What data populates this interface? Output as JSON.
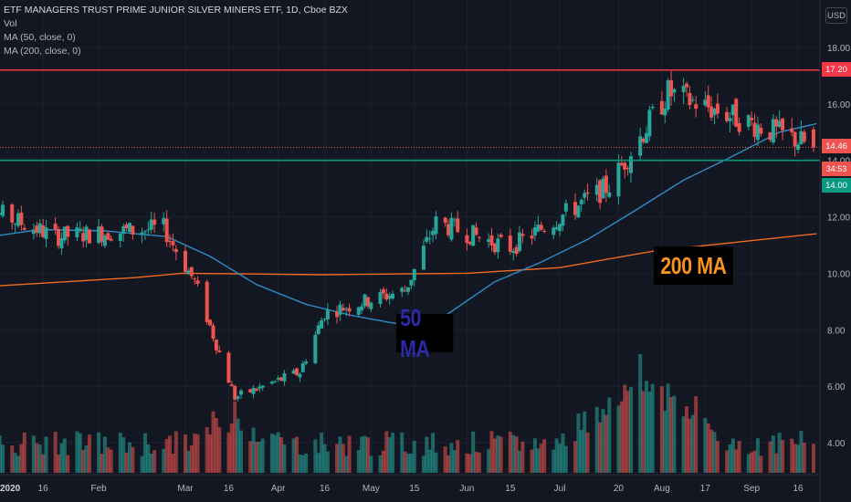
{
  "legend": {
    "title": "ETF MANAGERS TRUST PRIME JUNIOR SILVER MINERS ETF, 1D, Cboe BZX",
    "vol": "Vol",
    "ma50": "MA (50, close, 0)",
    "ma200": "MA (200, close, 0)"
  },
  "currency_button": "USD",
  "annotations": {
    "ma50_label": "50 MA",
    "ma200_label": "200 MA"
  },
  "price_tags": {
    "resistance": "17.20",
    "current": "14.46",
    "countdown": "34:53",
    "support": "14.00"
  },
  "colors": {
    "up": "#26a69a",
    "down": "#ef5350",
    "ma50": "#2e8bc9",
    "ma200": "#f26b21",
    "resistance_line": "#f23645",
    "support_line": "#089981",
    "background": "#131722"
  },
  "chart_data": {
    "type": "candlestick",
    "y_axis": {
      "ticks": [
        "18.00",
        "16.00",
        "14.00",
        "12.00",
        "10.00",
        "8.00",
        "6.00",
        "4.00"
      ],
      "tick_values": [
        18,
        16,
        14,
        12,
        10,
        8,
        6,
        4
      ],
      "ylim": [
        3.0,
        19.0
      ]
    },
    "x_axis": {
      "labels": [
        "2020",
        "16",
        "Feb",
        "Mar",
        "16",
        "Apr",
        "16",
        "May",
        "15",
        "Jun",
        "15",
        "Jul",
        "20",
        "Aug",
        "17",
        "Sep",
        "16"
      ],
      "label_dates": [
        "2020-01-01",
        "2020-01-16",
        "2020-02-03",
        "2020-03-02",
        "2020-03-16",
        "2020-04-01",
        "2020-04-16",
        "2020-05-01",
        "2020-05-15",
        "2020-06-01",
        "2020-06-15",
        "2020-07-01",
        "2020-07-20",
        "2020-08-03",
        "2020-08-17",
        "2020-09-01",
        "2020-09-16"
      ],
      "first_label_bold": true
    },
    "horizontal_lines": [
      {
        "name": "resistance",
        "value": 17.2
      },
      {
        "name": "support",
        "value": 14.0
      },
      {
        "name": "last-price",
        "value": 14.46,
        "dotted": true
      }
    ],
    "segments": [
      {
        "start": "2019-12-24",
        "end": "2020-01-20",
        "from": 12.5,
        "to": 11.3
      },
      {
        "start": "2020-01-20",
        "end": "2020-02-24",
        "from": 11.3,
        "to": 11.6
      },
      {
        "start": "2020-02-24",
        "end": "2020-03-05",
        "from": 11.6,
        "to": 9.7
      },
      {
        "start": "2020-03-05",
        "end": "2020-03-18",
        "from": 9.7,
        "to": 5.6
      },
      {
        "start": "2020-03-18",
        "end": "2020-04-08",
        "from": 5.6,
        "to": 6.5
      },
      {
        "start": "2020-04-08",
        "end": "2020-04-16",
        "from": 6.5,
        "to": 8.6
      },
      {
        "start": "2020-04-16",
        "end": "2020-05-12",
        "from": 8.6,
        "to": 9.4
      },
      {
        "start": "2020-05-12",
        "end": "2020-05-22",
        "from": 9.4,
        "to": 11.8
      },
      {
        "start": "2020-05-22",
        "end": "2020-06-15",
        "from": 11.8,
        "to": 10.9
      },
      {
        "start": "2020-06-15",
        "end": "2020-07-17",
        "from": 10.9,
        "to": 13.1
      },
      {
        "start": "2020-07-17",
        "end": "2020-08-05",
        "from": 13.1,
        "to": 16.4
      },
      {
        "start": "2020-08-05",
        "end": "2020-09-22",
        "from": 16.4,
        "to": 14.46
      }
    ],
    "ma50": {
      "dates": [
        "2019-12-24",
        "2020-01-15",
        "2020-02-05",
        "2020-02-25",
        "2020-03-10",
        "2020-03-25",
        "2020-04-10",
        "2020-04-25",
        "2020-05-10",
        "2020-05-25",
        "2020-06-10",
        "2020-06-25",
        "2020-07-10",
        "2020-07-25",
        "2020-08-10",
        "2020-08-25",
        "2020-09-10",
        "2020-09-22"
      ],
      "values": [
        11.2,
        11.55,
        11.5,
        11.3,
        10.6,
        9.6,
        8.9,
        8.5,
        8.2,
        8.5,
        9.7,
        10.4,
        11.2,
        12.2,
        13.3,
        14.1,
        15.0,
        15.3
      ]
    },
    "ma200": {
      "dates": [
        "2019-12-24",
        "2020-02-15",
        "2020-03-01",
        "2020-04-15",
        "2020-06-01",
        "2020-07-01",
        "2020-08-01",
        "2020-09-22"
      ],
      "values": [
        9.5,
        9.85,
        10.0,
        9.95,
        10.0,
        10.2,
        10.8,
        11.4
      ]
    },
    "volume": {
      "relative_height_of_panel": true,
      "peak_date": "2020-07-28"
    }
  }
}
